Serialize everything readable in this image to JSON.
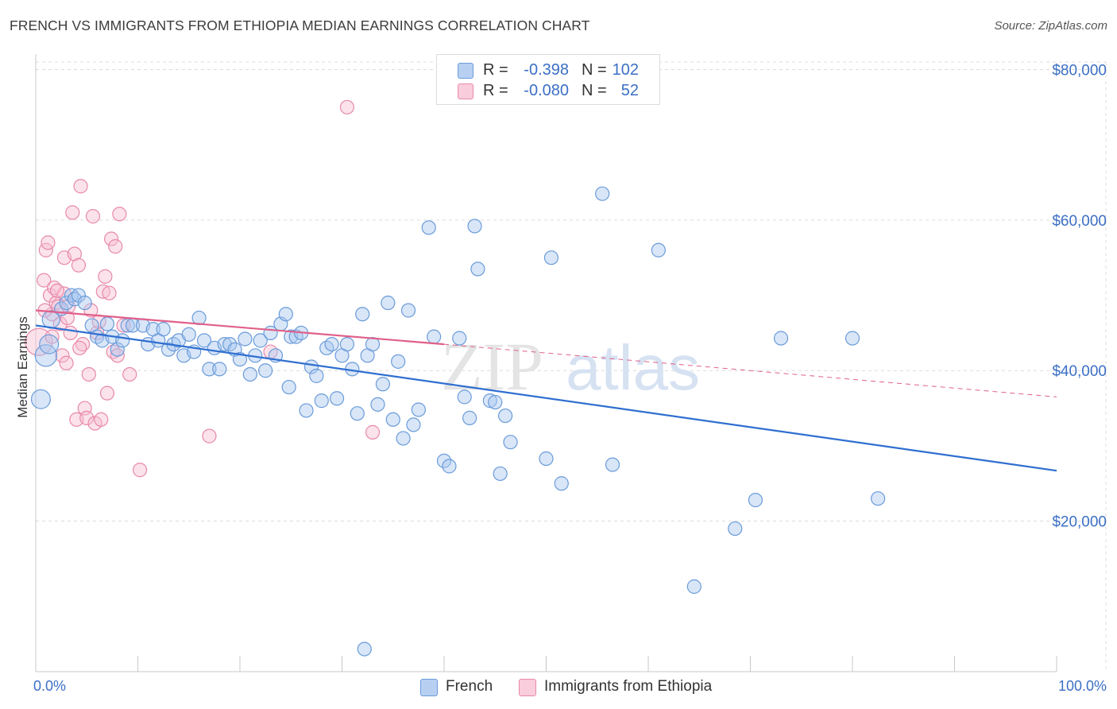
{
  "header": {
    "title": "FRENCH VS IMMIGRANTS FROM ETHIOPIA MEDIAN EARNINGS CORRELATION CHART",
    "source": "Source: ZipAtlas.com"
  },
  "watermark": {
    "part1": "ZIP",
    "part2": "atlas"
  },
  "legend": {
    "french": {
      "r_label": "R =",
      "r_value": "-0.398",
      "n_label": "N =",
      "n_value": "102"
    },
    "ethiopia": {
      "r_label": "R =",
      "r_value": "-0.080",
      "n_label": "N =",
      "n_value": "52"
    }
  },
  "bottom_legend": {
    "french": "French",
    "ethiopia": "Immigrants from Ethiopia"
  },
  "colors": {
    "french_fill": "#a9c8f0",
    "french_stroke": "#6b9bd9",
    "french_line": "#2f6fd0",
    "ethiopia_fill": "#f7bfd2",
    "ethiopia_stroke": "#e889aa",
    "ethiopia_line": "#e0608a",
    "axis_text": "#3b6fc4",
    "grid": "#dcdcdc"
  },
  "chart_data": {
    "type": "scatter",
    "title": "FRENCH VS IMMIGRANTS FROM ETHIOPIA MEDIAN EARNINGS CORRELATION CHART",
    "xlabel": "",
    "ylabel": "Median Earnings",
    "xlim": [
      0,
      100
    ],
    "ylim": [
      0,
      81000
    ],
    "x_tick_labels": [
      "0.0%",
      "100.0%"
    ],
    "y_ticks": [
      20000,
      40000,
      60000,
      80000
    ],
    "y_tick_labels": [
      "$20,000",
      "$40,000",
      "$60,000",
      "$80,000"
    ],
    "grid": true,
    "legend_position": "top-center",
    "series": [
      {
        "name": "French",
        "r": -0.398,
        "n": 102,
        "trend": {
          "x": [
            0,
            100
          ],
          "y": [
            46000,
            26700
          ]
        },
        "points": [
          [
            0.5,
            36200,
            14
          ],
          [
            1.0,
            42000,
            16
          ],
          [
            1.3,
            43500,
            14
          ],
          [
            1.5,
            46800,
            13
          ],
          [
            2.5,
            48200,
            10
          ],
          [
            3.0,
            49000,
            10
          ],
          [
            3.5,
            50000,
            10
          ],
          [
            3.8,
            49500,
            10
          ],
          [
            4.2,
            50000,
            10
          ],
          [
            4.8,
            49000,
            10
          ],
          [
            5.5,
            46000,
            10
          ],
          [
            6.0,
            44500,
            10
          ],
          [
            6.5,
            44000,
            10
          ],
          [
            7.0,
            46200,
            10
          ],
          [
            7.5,
            44500,
            10
          ],
          [
            8.0,
            42800,
            10
          ],
          [
            8.5,
            44000,
            10
          ],
          [
            9.0,
            46000,
            10
          ],
          [
            9.5,
            46000,
            10
          ],
          [
            10.5,
            46000,
            10
          ],
          [
            11.0,
            43500,
            10
          ],
          [
            11.5,
            45500,
            10
          ],
          [
            12.0,
            44000,
            10
          ],
          [
            12.5,
            45500,
            10
          ],
          [
            13.0,
            42800,
            10
          ],
          [
            13.5,
            43500,
            10
          ],
          [
            14.0,
            44000,
            10
          ],
          [
            14.5,
            42000,
            10
          ],
          [
            15.0,
            44800,
            10
          ],
          [
            15.5,
            42500,
            10
          ],
          [
            16.0,
            47000,
            10
          ],
          [
            16.5,
            44000,
            10
          ],
          [
            17.0,
            40200,
            10
          ],
          [
            17.5,
            43000,
            10
          ],
          [
            18.0,
            40200,
            10
          ],
          [
            18.5,
            43500,
            10
          ],
          [
            19.0,
            43500,
            10
          ],
          [
            19.5,
            42800,
            10
          ],
          [
            20.0,
            41500,
            10
          ],
          [
            20.5,
            44200,
            10
          ],
          [
            21.0,
            39500,
            10
          ],
          [
            21.5,
            42000,
            10
          ],
          [
            22.0,
            44000,
            10
          ],
          [
            22.5,
            40000,
            10
          ],
          [
            23.0,
            45000,
            10
          ],
          [
            23.5,
            42000,
            10
          ],
          [
            24.0,
            46200,
            10
          ],
          [
            24.5,
            47500,
            10
          ],
          [
            24.8,
            37800,
            10
          ],
          [
            25.0,
            44500,
            10
          ],
          [
            25.5,
            44500,
            10
          ],
          [
            26.0,
            45000,
            10
          ],
          [
            26.5,
            34700,
            10
          ],
          [
            27.0,
            40500,
            10
          ],
          [
            27.5,
            39300,
            10
          ],
          [
            28.0,
            36000,
            10
          ],
          [
            28.5,
            43000,
            10
          ],
          [
            29.0,
            43500,
            10
          ],
          [
            29.5,
            36300,
            10
          ],
          [
            30.0,
            42000,
            10
          ],
          [
            30.5,
            43500,
            10
          ],
          [
            31.0,
            40200,
            10
          ],
          [
            31.5,
            34300,
            10
          ],
          [
            32.0,
            47500,
            10
          ],
          [
            32.2,
            3000,
            10
          ],
          [
            32.5,
            42000,
            10
          ],
          [
            33.0,
            43500,
            10
          ],
          [
            33.5,
            35500,
            10
          ],
          [
            34.0,
            38200,
            10
          ],
          [
            34.5,
            49000,
            10
          ],
          [
            35.0,
            33500,
            10
          ],
          [
            35.5,
            41200,
            10
          ],
          [
            36.0,
            31000,
            10
          ],
          [
            36.5,
            48000,
            10
          ],
          [
            37.0,
            32800,
            10
          ],
          [
            37.5,
            34800,
            10
          ],
          [
            38.5,
            59000,
            10
          ],
          [
            39.0,
            44500,
            10
          ],
          [
            40.0,
            28000,
            10
          ],
          [
            40.5,
            27300,
            10
          ],
          [
            41.5,
            44300,
            10
          ],
          [
            42.0,
            36500,
            10
          ],
          [
            42.5,
            33700,
            10
          ],
          [
            43.0,
            59200,
            10
          ],
          [
            43.3,
            53500,
            10
          ],
          [
            44.5,
            36000,
            10
          ],
          [
            45.0,
            35800,
            10
          ],
          [
            45.5,
            26300,
            10
          ],
          [
            46.0,
            34000,
            10
          ],
          [
            46.5,
            30500,
            10
          ],
          [
            50.0,
            28300,
            10
          ],
          [
            50.5,
            55000,
            10
          ],
          [
            51.5,
            25000,
            10
          ],
          [
            55.5,
            63500,
            10
          ],
          [
            56.5,
            27500,
            10
          ],
          [
            61.0,
            56000,
            10
          ],
          [
            64.5,
            11300,
            10
          ],
          [
            68.5,
            19000,
            10
          ],
          [
            70.5,
            22800,
            10
          ],
          [
            73.0,
            44300,
            10
          ],
          [
            80.0,
            44300,
            10
          ],
          [
            82.5,
            23000,
            10
          ]
        ]
      },
      {
        "name": "Immigrants from Ethiopia",
        "r": -0.08,
        "n": 52,
        "trend": {
          "x": [
            0,
            40
          ],
          "y": [
            48000,
            43500
          ]
        },
        "trend_extension": {
          "x": [
            40,
            100
          ],
          "y": [
            43500,
            36500
          ]
        },
        "points": [
          [
            0.3,
            43800,
            20
          ],
          [
            0.8,
            52000,
            10
          ],
          [
            1.0,
            56000,
            10
          ],
          [
            1.2,
            57000,
            10
          ],
          [
            1.4,
            50000,
            10
          ],
          [
            1.6,
            47500,
            10
          ],
          [
            1.8,
            51000,
            10
          ],
          [
            2.0,
            49000,
            10
          ],
          [
            2.2,
            48500,
            10
          ],
          [
            2.4,
            46200,
            10
          ],
          [
            2.6,
            42000,
            10
          ],
          [
            2.8,
            55000,
            10
          ],
          [
            3.0,
            41000,
            10
          ],
          [
            3.2,
            48500,
            10
          ],
          [
            3.4,
            45000,
            10
          ],
          [
            3.6,
            61000,
            10
          ],
          [
            3.8,
            55500,
            10
          ],
          [
            4.0,
            33500,
            10
          ],
          [
            4.2,
            54000,
            10
          ],
          [
            4.4,
            64500,
            10
          ],
          [
            4.6,
            43500,
            10
          ],
          [
            4.8,
            35000,
            10
          ],
          [
            5.0,
            33700,
            10
          ],
          [
            5.2,
            39500,
            10
          ],
          [
            5.4,
            48000,
            10
          ],
          [
            5.6,
            60500,
            10
          ],
          [
            5.8,
            33000,
            10
          ],
          [
            6.0,
            45000,
            10
          ],
          [
            6.2,
            46500,
            10
          ],
          [
            6.4,
            33500,
            10
          ],
          [
            6.6,
            50500,
            10
          ],
          [
            6.8,
            52500,
            10
          ],
          [
            7.0,
            37000,
            10
          ],
          [
            7.2,
            50300,
            10
          ],
          [
            7.4,
            57500,
            10
          ],
          [
            7.6,
            42500,
            10
          ],
          [
            7.8,
            56500,
            10
          ],
          [
            8.0,
            42000,
            10
          ],
          [
            8.2,
            60800,
            10
          ],
          [
            8.6,
            46000,
            10
          ],
          [
            9.2,
            39500,
            10
          ],
          [
            10.2,
            26800,
            10
          ],
          [
            17.0,
            31300,
            10
          ],
          [
            23.0,
            42500,
            10
          ],
          [
            30.5,
            75000,
            10
          ],
          [
            33.0,
            31800,
            10
          ],
          [
            1.6,
            44500,
            10
          ],
          [
            2.8,
            50200,
            10
          ],
          [
            4.3,
            43000,
            10
          ],
          [
            3.1,
            47000,
            10
          ],
          [
            0.9,
            48000,
            10
          ],
          [
            2.1,
            50600,
            10
          ]
        ]
      }
    ]
  }
}
